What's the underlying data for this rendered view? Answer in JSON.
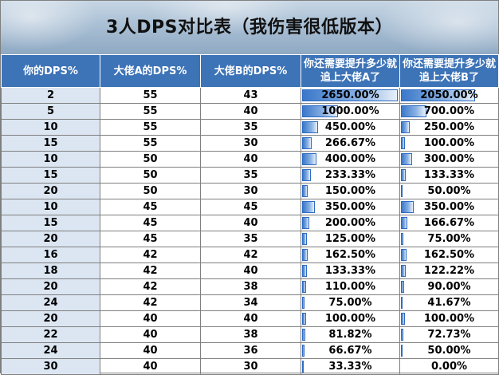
{
  "title": "3人DPS对比表（我伤害很低版本）",
  "headers": [
    "你的DPS%",
    "大佬A的DPS%",
    "大佬B的DPS%",
    "你还需要提升多少就追上大佬A了",
    "你还需要提升多少就追上大佬B了"
  ],
  "bar_max": 2650,
  "colors": {
    "header_bg": "#3d73b7",
    "first_col_bg": "#dce6f2",
    "bar": "#3a78c9"
  },
  "rows": [
    {
      "you": "2",
      "a": "55",
      "b": "43",
      "need_a": "2650.00%",
      "need_a_value": 2650,
      "need_b": "2050.00%",
      "need_b_value": 2050
    },
    {
      "you": "5",
      "a": "55",
      "b": "40",
      "need_a": "1000.00%",
      "need_a_value": 1000,
      "need_b": "700.00%",
      "need_b_value": 700
    },
    {
      "you": "10",
      "a": "55",
      "b": "35",
      "need_a": "450.00%",
      "need_a_value": 450,
      "need_b": "250.00%",
      "need_b_value": 250
    },
    {
      "you": "15",
      "a": "55",
      "b": "30",
      "need_a": "266.67%",
      "need_a_value": 266.67,
      "need_b": "100.00%",
      "need_b_value": 100
    },
    {
      "you": "10",
      "a": "50",
      "b": "40",
      "need_a": "400.00%",
      "need_a_value": 400,
      "need_b": "300.00%",
      "need_b_value": 300
    },
    {
      "you": "15",
      "a": "50",
      "b": "35",
      "need_a": "233.33%",
      "need_a_value": 233.33,
      "need_b": "133.33%",
      "need_b_value": 133.33
    },
    {
      "you": "20",
      "a": "50",
      "b": "30",
      "need_a": "150.00%",
      "need_a_value": 150,
      "need_b": "50.00%",
      "need_b_value": 50
    },
    {
      "you": "10",
      "a": "45",
      "b": "45",
      "need_a": "350.00%",
      "need_a_value": 350,
      "need_b": "350.00%",
      "need_b_value": 350
    },
    {
      "you": "15",
      "a": "45",
      "b": "40",
      "need_a": "200.00%",
      "need_a_value": 200,
      "need_b": "166.67%",
      "need_b_value": 166.67
    },
    {
      "you": "20",
      "a": "45",
      "b": "35",
      "need_a": "125.00%",
      "need_a_value": 125,
      "need_b": "75.00%",
      "need_b_value": 75
    },
    {
      "you": "16",
      "a": "42",
      "b": "42",
      "need_a": "162.50%",
      "need_a_value": 162.5,
      "need_b": "162.50%",
      "need_b_value": 162.5
    },
    {
      "you": "18",
      "a": "42",
      "b": "40",
      "need_a": "133.33%",
      "need_a_value": 133.33,
      "need_b": "122.22%",
      "need_b_value": 122.22
    },
    {
      "you": "20",
      "a": "42",
      "b": "38",
      "need_a": "110.00%",
      "need_a_value": 110,
      "need_b": "90.00%",
      "need_b_value": 90
    },
    {
      "you": "24",
      "a": "42",
      "b": "34",
      "need_a": "75.00%",
      "need_a_value": 75,
      "need_b": "41.67%",
      "need_b_value": 41.67
    },
    {
      "you": "20",
      "a": "40",
      "b": "40",
      "need_a": "100.00%",
      "need_a_value": 100,
      "need_b": "100.00%",
      "need_b_value": 100
    },
    {
      "you": "22",
      "a": "40",
      "b": "38",
      "need_a": "81.82%",
      "need_a_value": 81.82,
      "need_b": "72.73%",
      "need_b_value": 72.73
    },
    {
      "you": "24",
      "a": "40",
      "b": "36",
      "need_a": "66.67%",
      "need_a_value": 66.67,
      "need_b": "50.00%",
      "need_b_value": 50
    },
    {
      "you": "30",
      "a": "40",
      "b": "30",
      "need_a": "33.33%",
      "need_a_value": 33.33,
      "need_b": "0.00%",
      "need_b_value": 0
    }
  ]
}
